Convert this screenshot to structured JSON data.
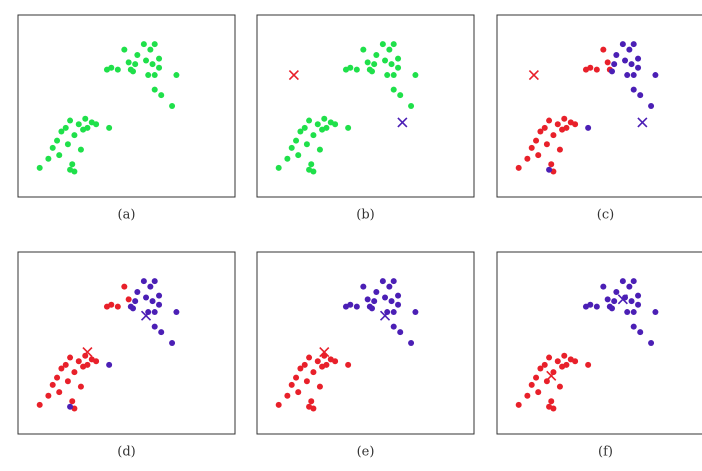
{
  "chart_data": [
    {
      "type": "scatter",
      "caption": "(a)",
      "xlim": [
        0,
        100
      ],
      "ylim": [
        0,
        100
      ],
      "series": [
        {
          "color": "#1fe04a",
          "marker": "o",
          "x": [
            41,
            46,
            49,
            51,
            52,
            54,
            55,
            58,
            59,
            60,
            61,
            62,
            63,
            63,
            65,
            65,
            63,
            66,
            71,
            73,
            43,
            53,
            10,
            14,
            16,
            18,
            19,
            22,
            23,
            24,
            25,
            26,
            26,
            28,
            29,
            30,
            31,
            32,
            34,
            36,
            42,
            20,
            24
          ],
          "y": [
            70,
            70,
            81,
            74,
            70,
            73,
            78,
            84,
            75,
            67,
            81,
            73,
            84,
            67,
            76,
            71,
            59,
            56,
            50,
            67,
            71,
            69,
            16,
            21,
            27,
            31,
            23,
            38,
            29,
            42,
            18,
            14,
            34,
            40,
            26,
            37,
            43,
            38,
            41,
            40,
            38,
            36,
            15
          ]
        }
      ]
    },
    {
      "type": "scatter",
      "caption": "(b)",
      "xlim": [
        0,
        100
      ],
      "ylim": [
        0,
        100
      ],
      "series": [
        {
          "color": "#1fe04a",
          "marker": "o",
          "x": [
            41,
            46,
            49,
            51,
            52,
            54,
            55,
            58,
            59,
            60,
            61,
            62,
            63,
            63,
            65,
            65,
            63,
            66,
            71,
            73,
            43,
            53,
            10,
            14,
            16,
            18,
            19,
            22,
            23,
            24,
            25,
            26,
            26,
            28,
            29,
            30,
            31,
            32,
            34,
            36,
            42,
            20,
            24
          ],
          "y": [
            70,
            70,
            81,
            74,
            70,
            73,
            78,
            84,
            75,
            67,
            81,
            73,
            84,
            67,
            76,
            71,
            59,
            56,
            50,
            67,
            71,
            69,
            16,
            21,
            27,
            31,
            23,
            38,
            29,
            42,
            18,
            14,
            34,
            40,
            26,
            37,
            43,
            38,
            41,
            40,
            38,
            36,
            15
          ]
        },
        {
          "color": "#e8202a",
          "marker": "x",
          "x": [
            17
          ],
          "y": [
            67
          ]
        },
        {
          "color": "#4b1fb5",
          "marker": "x",
          "x": [
            67
          ],
          "y": [
            41
          ]
        }
      ]
    },
    {
      "type": "scatter",
      "caption": "(c)",
      "xlim": [
        0,
        100
      ],
      "ylim": [
        0,
        100
      ],
      "series": [
        {
          "color": "#e8202a",
          "marker": "o",
          "x": [
            41,
            46,
            49,
            51,
            52,
            43,
            10,
            14,
            16,
            18,
            19,
            22,
            23,
            24,
            25,
            26,
            26,
            28,
            29,
            30,
            31,
            32,
            34,
            36,
            20
          ],
          "y": [
            70,
            70,
            81,
            74,
            70,
            71,
            16,
            21,
            27,
            31,
            23,
            38,
            29,
            42,
            18,
            14,
            34,
            40,
            26,
            37,
            43,
            38,
            41,
            40,
            36
          ]
        },
        {
          "color": "#4b1fb5",
          "marker": "o",
          "x": [
            54,
            55,
            58,
            59,
            60,
            61,
            62,
            63,
            63,
            65,
            65,
            63,
            66,
            71,
            73,
            53,
            42,
            24
          ],
          "y": [
            73,
            78,
            84,
            75,
            67,
            81,
            73,
            84,
            67,
            76,
            71,
            59,
            56,
            50,
            67,
            69,
            38,
            15
          ]
        },
        {
          "color": "#e8202a",
          "marker": "x",
          "x": [
            17
          ],
          "y": [
            67
          ]
        },
        {
          "color": "#4b1fb5",
          "marker": "x",
          "x": [
            67
          ],
          "y": [
            41
          ]
        }
      ]
    },
    {
      "type": "scatter",
      "caption": "(d)",
      "xlim": [
        0,
        100
      ],
      "ylim": [
        0,
        100
      ],
      "series": [
        {
          "color": "#e8202a",
          "marker": "o",
          "x": [
            41,
            46,
            49,
            51,
            43,
            10,
            14,
            16,
            18,
            19,
            22,
            23,
            24,
            25,
            26,
            26,
            28,
            29,
            30,
            31,
            32,
            34,
            36,
            20
          ],
          "y": [
            70,
            70,
            81,
            74,
            71,
            16,
            21,
            27,
            31,
            23,
            38,
            29,
            42,
            18,
            14,
            34,
            40,
            26,
            37,
            43,
            38,
            41,
            40,
            36
          ]
        },
        {
          "color": "#4b1fb5",
          "marker": "o",
          "x": [
            52,
            54,
            55,
            58,
            59,
            60,
            61,
            62,
            63,
            63,
            65,
            65,
            63,
            66,
            71,
            73,
            53,
            42,
            24
          ],
          "y": [
            70,
            73,
            78,
            84,
            75,
            67,
            81,
            73,
            84,
            67,
            76,
            71,
            59,
            56,
            50,
            67,
            69,
            38,
            15
          ]
        },
        {
          "color": "#e8202a",
          "marker": "x",
          "x": [
            32
          ],
          "y": [
            45
          ]
        },
        {
          "color": "#4b1fb5",
          "marker": "x",
          "x": [
            59
          ],
          "y": [
            65
          ]
        }
      ]
    },
    {
      "type": "scatter",
      "caption": "(e)",
      "xlim": [
        0,
        100
      ],
      "ylim": [
        0,
        100
      ],
      "series": [
        {
          "color": "#e8202a",
          "marker": "o",
          "x": [
            10,
            14,
            16,
            18,
            19,
            22,
            23,
            24,
            25,
            26,
            26,
            28,
            29,
            30,
            31,
            32,
            34,
            36,
            42,
            20,
            24
          ],
          "y": [
            16,
            21,
            27,
            31,
            23,
            38,
            29,
            42,
            18,
            14,
            34,
            40,
            26,
            37,
            43,
            38,
            41,
            40,
            38,
            36,
            15
          ]
        },
        {
          "color": "#4b1fb5",
          "marker": "o",
          "x": [
            41,
            46,
            49,
            51,
            52,
            54,
            55,
            58,
            59,
            60,
            61,
            62,
            63,
            63,
            65,
            65,
            63,
            66,
            71,
            73,
            43,
            53
          ],
          "y": [
            70,
            70,
            81,
            74,
            70,
            73,
            78,
            84,
            75,
            67,
            81,
            73,
            84,
            67,
            76,
            71,
            59,
            56,
            50,
            67,
            71,
            69
          ]
        },
        {
          "color": "#e8202a",
          "marker": "x",
          "x": [
            31
          ],
          "y": [
            45
          ]
        },
        {
          "color": "#4b1fb5",
          "marker": "x",
          "x": [
            59
          ],
          "y": [
            65
          ]
        }
      ]
    },
    {
      "type": "scatter",
      "caption": "(f)",
      "xlim": [
        0,
        100
      ],
      "ylim": [
        0,
        100
      ],
      "series": [
        {
          "color": "#e8202a",
          "marker": "o",
          "x": [
            10,
            14,
            16,
            18,
            19,
            22,
            23,
            24,
            25,
            26,
            26,
            28,
            29,
            30,
            31,
            32,
            34,
            36,
            42,
            20,
            24
          ],
          "y": [
            16,
            21,
            27,
            31,
            23,
            38,
            29,
            42,
            18,
            14,
            34,
            40,
            26,
            37,
            43,
            38,
            41,
            40,
            38,
            36,
            15
          ]
        },
        {
          "color": "#4b1fb5",
          "marker": "o",
          "x": [
            41,
            46,
            49,
            51,
            52,
            54,
            55,
            58,
            59,
            60,
            61,
            62,
            63,
            63,
            65,
            65,
            63,
            66,
            71,
            73,
            43,
            53
          ],
          "y": [
            70,
            70,
            81,
            74,
            70,
            73,
            78,
            84,
            75,
            67,
            81,
            73,
            84,
            67,
            76,
            71,
            59,
            56,
            50,
            67,
            71,
            69
          ]
        },
        {
          "color": "#e8202a",
          "marker": "x",
          "x": [
            25
          ],
          "y": [
            32
          ]
        },
        {
          "color": "#4b1fb5",
          "marker": "x",
          "x": [
            58
          ],
          "y": [
            74
          ]
        }
      ]
    }
  ]
}
